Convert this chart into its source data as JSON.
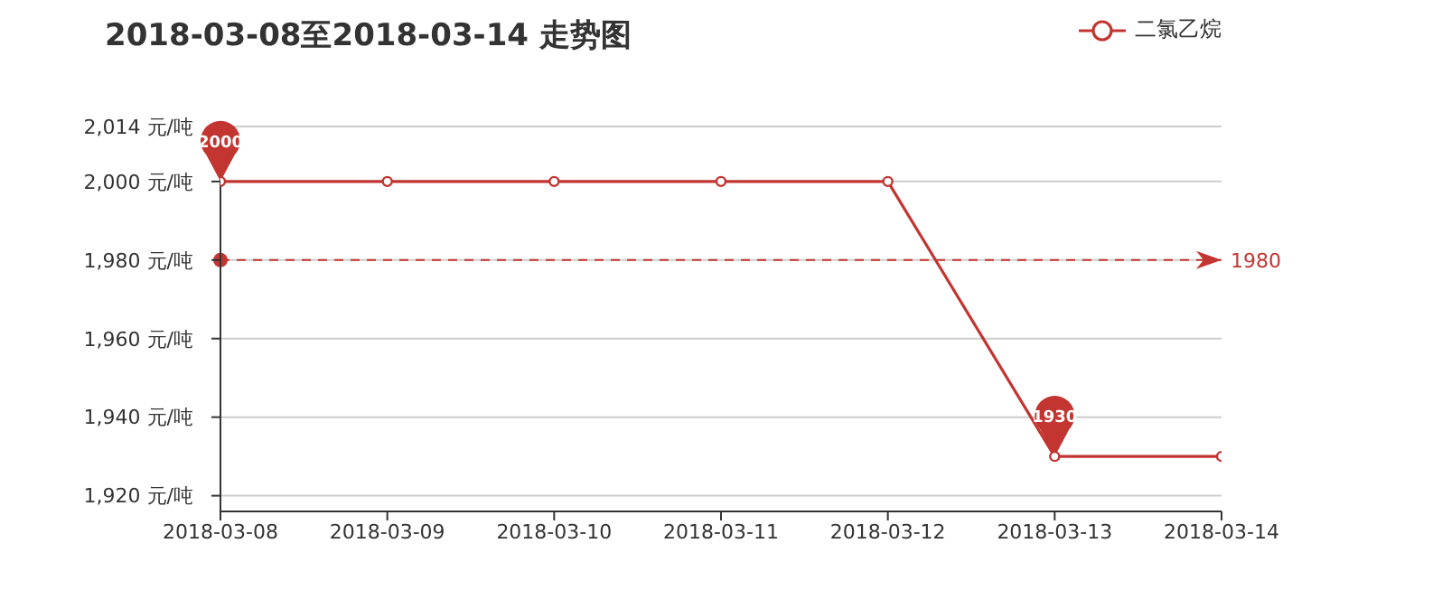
{
  "chart_data": {
    "type": "line",
    "title": "2018-03-08至2018-03-14 走势图",
    "categories": [
      "2018-03-08",
      "2018-03-09",
      "2018-03-10",
      "2018-03-11",
      "2018-03-12",
      "2018-03-13",
      "2018-03-14"
    ],
    "series": [
      {
        "name": "二氯乙烷",
        "color": "#c23531",
        "values": [
          2000,
          2000,
          2000,
          2000,
          2000,
          1930,
          1930
        ]
      }
    ],
    "ylim": [
      1916,
      2014
    ],
    "yticks": [
      {
        "value": 1920,
        "label": "1,920 元/吨"
      },
      {
        "value": 1940,
        "label": "1,940 元/吨"
      },
      {
        "value": 1960,
        "label": "1,960 元/吨"
      },
      {
        "value": 1980,
        "label": "1,980 元/吨"
      },
      {
        "value": 2000,
        "label": "2,000 元/吨"
      },
      {
        "value": 2014,
        "label": "2,014 元/吨"
      }
    ],
    "annotations": [
      {
        "text": "2000",
        "x": "2018-03-08",
        "y": 2000
      },
      {
        "text": "1930",
        "x": "2018-03-13",
        "y": 1930
      }
    ],
    "ref_lines": [
      {
        "axis": "y",
        "value": 1980,
        "label": "1980",
        "color": "#c23531",
        "line_style": "dashed"
      }
    ],
    "grid": "y",
    "legend": "top right",
    "marker": "circle",
    "line_style": "solid"
  }
}
